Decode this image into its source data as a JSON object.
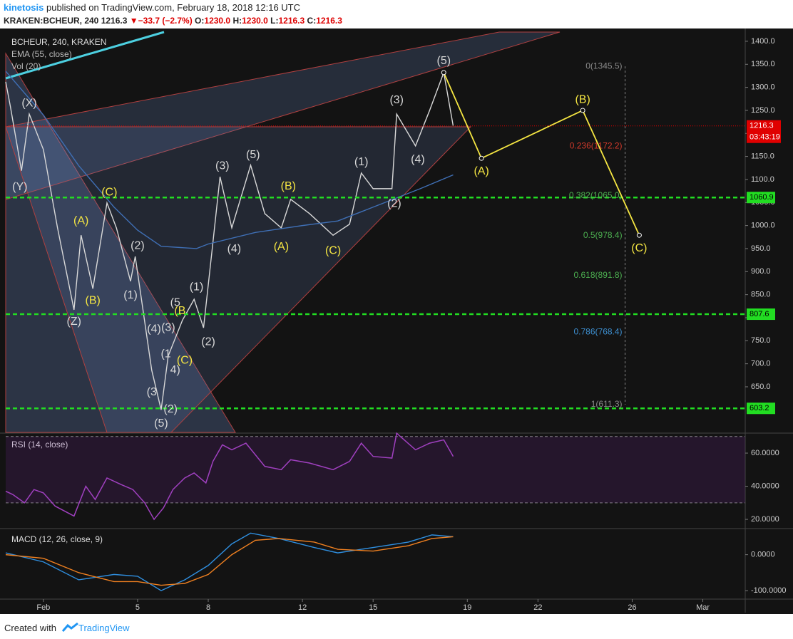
{
  "header": {
    "author": "kinetosis",
    "published": "published on TradingView.com, February 18, 2018 12:16 UTC"
  },
  "quote": {
    "symbol": "KRAKEN:BCHEUR, 240",
    "last": "1216.3",
    "arrow": "▼",
    "change": "−33.7 (−2.7%)",
    "o_label": "O:",
    "open": "1230.0",
    "h_label": "H:",
    "high": "1230.0",
    "l_label": "L:",
    "low": "1216.3",
    "c_label": "C:",
    "close": "1216.3"
  },
  "chart_data": [
    {
      "type": "line",
      "title": "BCHEUR, 240, KRAKEN",
      "volume_label": "Vol (20)",
      "xlim": [
        -0.6,
        30.8
      ],
      "ylim": [
        551,
        1420
      ],
      "xticks": [
        {
          "value": 1,
          "label": "Feb"
        },
        5,
        8,
        12,
        15,
        19,
        22,
        26,
        {
          "value": 29,
          "label": "Mar"
        }
      ],
      "yticks": [
        {
          "value": 650,
          "label": "650.0"
        },
        {
          "value": 700,
          "label": "700.0"
        },
        {
          "value": 750,
          "label": "750.0"
        },
        {
          "value": 800,
          "label": "800.0"
        },
        {
          "value": 850,
          "label": "850.0"
        },
        {
          "value": 900,
          "label": "900.0"
        },
        {
          "value": 950,
          "label": "950.0"
        },
        {
          "value": 1000,
          "label": "1000.0"
        },
        {
          "value": 1050,
          "label": "1050.0"
        },
        {
          "value": 1100,
          "label": "1100.0"
        },
        {
          "value": 1150,
          "label": "1150.0"
        },
        {
          "value": 1200,
          "label": "1200.0"
        },
        {
          "value": 1250,
          "label": "1250.0"
        },
        {
          "value": 1300,
          "label": "1300.0"
        },
        {
          "value": 1350,
          "label": "1350.0"
        },
        {
          "value": 1400,
          "label": "1400.0"
        }
      ],
      "series": [
        {
          "name": "BCHEUR, 240, KRAKEN",
          "color": "#d8d8d8",
          "x": [
            -0.6,
            -0.4,
            0.07,
            0.4,
            1,
            1.6,
            2.3,
            2.6,
            3.1,
            3.7,
            4.1,
            4.7,
            4.9,
            5.6,
            6.0,
            6.3,
            6.9,
            7.4,
            7.8,
            8.2,
            8.5,
            9.0,
            9.8,
            10.4,
            11.1,
            11.5,
            12.3,
            13.3,
            14.0,
            14.5,
            15.0,
            15.8,
            16.0,
            16.8,
            17.4,
            18.0,
            18.4
          ],
          "values": [
            1312,
            1258,
            1119,
            1242,
            1165,
            995,
            817,
            979,
            863,
            1049,
            995,
            879,
            933,
            686,
            600,
            717,
            794,
            840,
            778,
            964,
            1106,
            995,
            1131,
            1026,
            995,
            1057,
            1026,
            979,
            1003,
            1114,
            1080,
            1080,
            1242,
            1173,
            1250,
            1332,
            1216.3
          ]
        },
        {
          "name": "EMA (55, close)",
          "color": "#3f6fb5",
          "x": [
            -0.6,
            1,
            2.5,
            4,
            5,
            6,
            7.5,
            8,
            10,
            12,
            13.5,
            15,
            17,
            18.4
          ],
          "values": [
            1335,
            1240,
            1130,
            1040,
            990,
            955,
            950,
            960,
            985,
            1000,
            1010,
            1040,
            1080,
            1110
          ]
        }
      ],
      "projection": {
        "color": "#f5e642",
        "x": [
          18.0,
          19.6,
          23.9,
          26.3
        ],
        "values": [
          1332,
          1146,
          1250,
          979
        ]
      },
      "fib": {
        "x": 25.7,
        "levels": [
          {
            "value": 1345.5,
            "label": "0(1345.5)",
            "color": "#8a8a8a"
          },
          {
            "value": 1172.2,
            "label": "0.236(1172.2)",
            "color": "#d0392b"
          },
          {
            "value": 1065.0,
            "label": "0.382(1065.0)",
            "color": "#4caf50"
          },
          {
            "value": 978.4,
            "label": "0.5(978.4)",
            "color": "#4caf50"
          },
          {
            "value": 891.8,
            "label": "0.618(891.8)",
            "color": "#4caf50"
          },
          {
            "value": 768.4,
            "label": "0.786(768.4)",
            "color": "#3d8fd0"
          },
          {
            "value": 611.3,
            "label": "1(611.3)",
            "color": "#8a8a8a"
          }
        ]
      },
      "levels": [
        1060.9,
        807.6,
        603.2
      ],
      "level_color": "#22dd22",
      "price_tag": 1216.3,
      "countdown": "03:43:19",
      "tag_color": "#e00000",
      "wave_labels": [
        {
          "text": "(X)",
          "x": 0.4,
          "y": 1265,
          "color": "#d8d8d8"
        },
        {
          "text": "(Y)",
          "x": 0.0,
          "y": 1083,
          "color": "#d8d8d8"
        },
        {
          "text": "(Z)",
          "x": 2.3,
          "y": 791,
          "color": "#d8d8d8"
        },
        {
          "text": "(2)",
          "x": 5.0,
          "y": 956,
          "color": "#d8d8d8"
        },
        {
          "text": "(1)",
          "x": 4.7,
          "y": 848,
          "color": "#d8d8d8"
        },
        {
          "text": "(4)",
          "x": 5.7,
          "y": 775,
          "color": "#d8d8d8"
        },
        {
          "text": "(3)",
          "x": 6.3,
          "y": 778,
          "color": "#d8d8d8"
        },
        {
          "text": "(5",
          "x": 6.6,
          "y": 832,
          "color": "#d8d8d8"
        },
        {
          "text": "(1",
          "x": 6.2,
          "y": 721,
          "color": "#d8d8d8"
        },
        {
          "text": "(3",
          "x": 5.6,
          "y": 638,
          "color": "#d8d8d8"
        },
        {
          "text": "(5)",
          "x": 6.0,
          "y": 570,
          "color": "#d8d8d8"
        },
        {
          "text": "(2)",
          "x": 6.4,
          "y": 601,
          "color": "#d8d8d8"
        },
        {
          "text": "4)",
          "x": 6.6,
          "y": 686,
          "color": "#d8d8d8"
        },
        {
          "text": "(1)",
          "x": 7.5,
          "y": 866,
          "color": "#d8d8d8"
        },
        {
          "text": "(2)",
          "x": 8.0,
          "y": 747,
          "color": "#d8d8d8"
        },
        {
          "text": "(3)",
          "x": 8.6,
          "y": 1129,
          "color": "#d8d8d8"
        },
        {
          "text": "(4)",
          "x": 9.1,
          "y": 949,
          "color": "#d8d8d8"
        },
        {
          "text": "(5)",
          "x": 9.9,
          "y": 1153,
          "color": "#d8d8d8"
        },
        {
          "text": "(1)",
          "x": 14.5,
          "y": 1137,
          "color": "#d8d8d8"
        },
        {
          "text": "(2)",
          "x": 15.9,
          "y": 1047,
          "color": "#d8d8d8"
        },
        {
          "text": "(3)",
          "x": 16.0,
          "y": 1272,
          "color": "#d8d8d8"
        },
        {
          "text": "(4)",
          "x": 16.9,
          "y": 1143,
          "color": "#d8d8d8"
        },
        {
          "text": "(5)",
          "x": 18.0,
          "y": 1357,
          "color": "#d8d8d8"
        },
        {
          "text": "(A)",
          "x": 2.6,
          "y": 1010,
          "color": "#f5e642"
        },
        {
          "text": "(B)",
          "x": 3.1,
          "y": 837,
          "color": "#f5e642"
        },
        {
          "text": "(C)",
          "x": 3.8,
          "y": 1072,
          "color": "#f5e642"
        },
        {
          "text": "(B",
          "x": 6.8,
          "y": 814,
          "color": "#f5e642"
        },
        {
          "text": "(C)",
          "x": 7.0,
          "y": 707,
          "color": "#f5e642"
        },
        {
          "text": "(A)",
          "x": 11.1,
          "y": 953,
          "color": "#f5e642"
        },
        {
          "text": "(B)",
          "x": 11.4,
          "y": 1085,
          "color": "#f5e642"
        },
        {
          "text": "(C)",
          "x": 13.3,
          "y": 945,
          "color": "#f5e642"
        },
        {
          "text": "(A)",
          "x": 19.6,
          "y": 1117,
          "color": "#f5e642"
        },
        {
          "text": "(B)",
          "x": 23.9,
          "y": 1273,
          "color": "#f5e642"
        },
        {
          "text": "(C)",
          "x": 26.3,
          "y": 950,
          "color": "#f5e642"
        }
      ]
    },
    {
      "type": "line",
      "title": "RSI (14, close)",
      "xlim": [
        -0.6,
        30.8
      ],
      "ylim": [
        15.3,
        71.2
      ],
      "yticks": [
        {
          "value": 20,
          "label": "20.0000"
        },
        {
          "value": 40,
          "label": "40.0000"
        },
        {
          "value": 60,
          "label": "60.0000"
        }
      ],
      "bands": [
        30,
        70
      ],
      "color": "#a040c0",
      "x": [
        -0.6,
        -0.3,
        0.2,
        0.6,
        1.0,
        1.5,
        2.3,
        2.8,
        3.2,
        3.7,
        4.3,
        4.8,
        5.3,
        5.7,
        6.1,
        6.5,
        7.0,
        7.4,
        7.9,
        8.2,
        8.6,
        9.0,
        9.6,
        10.4,
        11.1,
        11.5,
        12.3,
        13.3,
        14.0,
        14.5,
        15.0,
        15.8,
        16.0,
        16.8,
        17.4,
        18.0,
        18.4
      ],
      "values": [
        37,
        35,
        30,
        38,
        36,
        28,
        22,
        40,
        32,
        45,
        41,
        38,
        30,
        20,
        27,
        38,
        45,
        48,
        42,
        55,
        65,
        62,
        66,
        52,
        50,
        56,
        54,
        50,
        55,
        66,
        58,
        57,
        72,
        62,
        66,
        68,
        58
      ]
    },
    {
      "type": "line",
      "title": "MACD (12, 26, close, 9)",
      "xlim": [
        -0.6,
        30.8
      ],
      "ylim": [
        -121.6,
        70.6
      ],
      "yticks": [
        {
          "value": -100,
          "label": "-100.0000"
        },
        {
          "value": 0,
          "label": "0.0000"
        }
      ],
      "series": [
        {
          "name": "MACD",
          "color": "#2f8fe0",
          "x": [
            -0.6,
            1,
            2.5,
            4,
            5,
            6,
            7,
            8,
            9,
            9.8,
            11,
            12.5,
            13.5,
            15,
            16.5,
            17.5,
            18.4
          ],
          "values": [
            5,
            -20,
            -70,
            -55,
            -60,
            -100,
            -70,
            -30,
            30,
            60,
            45,
            20,
            5,
            20,
            35,
            55,
            50
          ]
        },
        {
          "name": "Signal",
          "color": "#f08020",
          "x": [
            -0.6,
            1,
            2.5,
            4,
            5,
            6,
            7,
            8,
            9,
            10,
            11,
            12.5,
            13.5,
            15,
            16.5,
            17.5,
            18.4
          ],
          "values": [
            0,
            -10,
            -50,
            -75,
            -75,
            -85,
            -80,
            -55,
            0,
            40,
            45,
            35,
            15,
            10,
            25,
            45,
            50
          ]
        }
      ]
    }
  ],
  "footer": {
    "created": "Created with",
    "brand": "TradingView"
  }
}
